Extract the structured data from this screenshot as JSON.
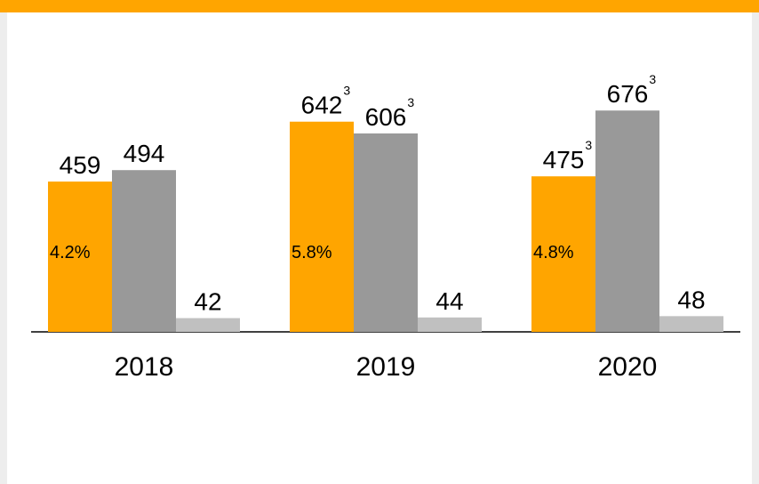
{
  "chart_data": {
    "type": "bar",
    "categories": [
      "2018",
      "2019",
      "2020"
    ],
    "series": [
      {
        "color": "#ffa500",
        "values": [
          459,
          642,
          475
        ],
        "notes": [
          null,
          "3",
          "3"
        ],
        "inner_labels": [
          "4.2%",
          "5.8%",
          "4.8%"
        ]
      },
      {
        "color": "#999999",
        "values": [
          494,
          606,
          676
        ],
        "notes": [
          null,
          "3",
          "3"
        ]
      },
      {
        "color": "#c0c0c0",
        "values": [
          42,
          44,
          48
        ]
      }
    ],
    "ylim": [
      0,
      1000
    ]
  }
}
